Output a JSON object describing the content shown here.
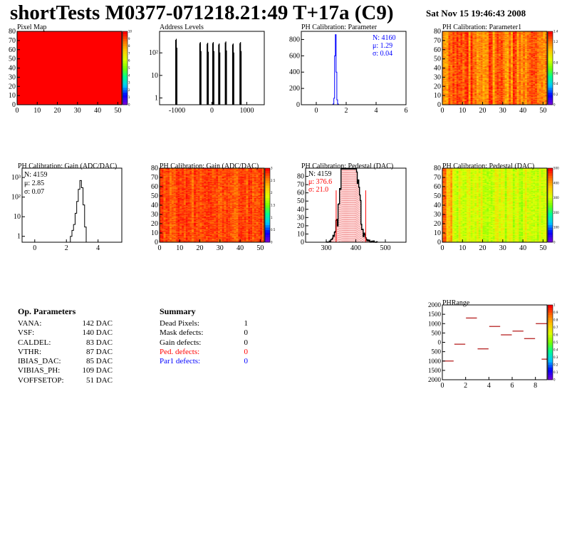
{
  "header": {
    "title": "shortTests M0377-071218.21:49 T+17a (C9)",
    "date": "Sat Nov 15 19:46:43 2008"
  },
  "op_params": {
    "title": "Op. Parameters",
    "rows": [
      {
        "k": "VANA:",
        "v": "142 DAC"
      },
      {
        "k": "VSF:",
        "v": "140 DAC"
      },
      {
        "k": "CALDEL:",
        "v": "83 DAC"
      },
      {
        "k": "VTHR:",
        "v": "87 DAC"
      },
      {
        "k": "IBIAS_DAC:",
        "v": "85 DAC"
      },
      {
        "k": "VIBIAS_PH:",
        "v": "109 DAC"
      },
      {
        "k": "VOFFSETOP:",
        "v": "51 DAC"
      }
    ]
  },
  "summary": {
    "title": "Summary",
    "rows": [
      {
        "k": "Dead Pixels:",
        "v": "1",
        "color": "#000000"
      },
      {
        "k": "Mask defects:",
        "v": "0",
        "color": "#000000"
      },
      {
        "k": "Gain defects:",
        "v": "0",
        "color": "#000000"
      },
      {
        "k": "Ped. defects:",
        "v": "0",
        "color": "#ff0000"
      },
      {
        "k": "Par1 defects:",
        "v": "0",
        "color": "#0000ff"
      }
    ]
  },
  "chart_data": [
    {
      "id": "pixel-map",
      "type": "heatmap",
      "title": "Pixel Map",
      "xlim": [
        0,
        52
      ],
      "ylim": [
        0,
        80
      ],
      "xticks": [
        "0",
        "10",
        "20",
        "30",
        "40",
        "50"
      ],
      "yticks": [
        "0",
        "10",
        "20",
        "30",
        "40",
        "50",
        "60",
        "70",
        "80"
      ],
      "zlim": [
        0,
        10
      ],
      "zticks": [
        "0",
        "1",
        "2",
        "3",
        "4",
        "5",
        "6",
        "7",
        "8",
        "9",
        "10"
      ],
      "uniform_value": 10
    },
    {
      "id": "address-levels",
      "type": "bar",
      "title": "Address Levels",
      "log_y": true,
      "xlim": [
        -1500,
        1500
      ],
      "ylim": [
        0.5,
        900
      ],
      "xticks": [
        "-1000",
        "0",
        "1000"
      ],
      "yticks": [
        "1",
        "10",
        "10²"
      ],
      "peaks": [
        {
          "x": -1020,
          "counts": 420
        },
        {
          "x": -330,
          "counts": 300
        },
        {
          "x": -120,
          "counts": 280
        },
        {
          "x": 40,
          "counts": 300
        },
        {
          "x": 210,
          "counts": 260
        },
        {
          "x": 400,
          "counts": 320
        },
        {
          "x": 610,
          "counts": 260
        },
        {
          "x": 820,
          "counts": 300
        }
      ]
    },
    {
      "id": "ph-parameter",
      "type": "bar",
      "title": "PH Calibration: Parameter",
      "xlim": [
        -1,
        6
      ],
      "ylim": [
        0,
        900
      ],
      "xticks": [
        "0",
        "2",
        "4",
        "6"
      ],
      "yticks": [
        "0",
        "200",
        "400",
        "600",
        "800"
      ],
      "stats": {
        "N": "N: 4160",
        "mean": "μ: 1.29",
        "sigma": "σ: 0.04"
      },
      "bins": [
        [
          1.15,
          10
        ],
        [
          1.2,
          80
        ],
        [
          1.25,
          600
        ],
        [
          1.3,
          860
        ],
        [
          1.35,
          400
        ],
        [
          1.4,
          60
        ],
        [
          1.45,
          10
        ]
      ]
    },
    {
      "id": "ph-parameter1",
      "type": "heatmap",
      "title": "PH Calibration: Parameter1",
      "xlim": [
        0,
        52
      ],
      "ylim": [
        0,
        80
      ],
      "xticks": [
        "0",
        "10",
        "20",
        "30",
        "40",
        "50"
      ],
      "yticks": [
        "0",
        "10",
        "20",
        "30",
        "40",
        "50",
        "60",
        "70",
        "80"
      ],
      "zlim": [
        0,
        1.4
      ],
      "zticks": [
        "0",
        "0.2",
        "0.4",
        "0.6",
        "0.8",
        "1",
        "1.2",
        "1.4"
      ]
    },
    {
      "id": "gain-hist",
      "type": "bar",
      "title": "PH Calibration: Gain (ADC/DAC)",
      "log_y": true,
      "xlim": [
        -0.8,
        5.5
      ],
      "ylim": [
        0.5,
        3000
      ],
      "xticks": [
        "0",
        "2",
        "4"
      ],
      "yticks": [
        "1",
        "10",
        "10²",
        "10³"
      ],
      "stats": {
        "N": "N: 4159",
        "mean": "μ: 2.85",
        "sigma": "σ: 0.07"
      },
      "bins": [
        [
          2.3,
          1
        ],
        [
          2.4,
          2
        ],
        [
          2.5,
          4
        ],
        [
          2.6,
          15
        ],
        [
          2.7,
          60
        ],
        [
          2.8,
          250
        ],
        [
          2.9,
          700
        ],
        [
          3.0,
          300
        ],
        [
          3.1,
          40
        ],
        [
          3.2,
          3
        ]
      ]
    },
    {
      "id": "gain-map",
      "type": "heatmap",
      "title": "PH Calibration: Gain (ADC/DAC)",
      "xlim": [
        0,
        52
      ],
      "ylim": [
        0,
        80
      ],
      "xticks": [
        "0",
        "10",
        "20",
        "30",
        "40",
        "50"
      ],
      "yticks": [
        "0",
        "10",
        "20",
        "30",
        "40",
        "50",
        "60",
        "70",
        "80"
      ],
      "zlim": [
        0,
        3
      ],
      "zticks": [
        "0",
        "0.5",
        "1",
        "1.5",
        "2",
        "2.5",
        "3"
      ]
    },
    {
      "id": "pedestal-hist",
      "type": "bar",
      "title": "PH Calibration: Pedestal (DAC)",
      "xlim": [
        230,
        570
      ],
      "ylim": [
        0,
        90
      ],
      "xticks": [
        "300",
        "400",
        "500"
      ],
      "yticks": [
        "0",
        "10",
        "20",
        "30",
        "40",
        "50",
        "60",
        "70",
        "80"
      ],
      "stats": {
        "N": "N: 4159",
        "mean": "μ: 376.6",
        "sigma": "σ: 21.0"
      },
      "mean": 376.6,
      "sigma": 21.0,
      "n": 4159,
      "cut_lines": [
        333.5,
        433.5
      ]
    },
    {
      "id": "pedestal-map",
      "type": "heatmap",
      "title": "PH Calibration: Pedestal (DAC)",
      "xlim": [
        0,
        52
      ],
      "ylim": [
        0,
        80
      ],
      "xticks": [
        "0",
        "10",
        "20",
        "30",
        "40",
        "50"
      ],
      "yticks": [
        "0",
        "10",
        "20",
        "30",
        "40",
        "50",
        "60",
        "70",
        "80"
      ],
      "zlim": [
        0,
        500
      ],
      "zticks": [
        "0",
        "100",
        "200",
        "300",
        "400",
        "500"
      ]
    },
    {
      "id": "phrange",
      "type": "scatter",
      "title": "PHRange",
      "xlim": [
        0,
        9
      ],
      "ylim": [
        -2000,
        2000
      ],
      "xticks": [
        "0",
        "2",
        "4",
        "6",
        "8"
      ],
      "yticks": [
        "2000",
        "1500",
        "1000",
        "500",
        "0",
        "500",
        "1000",
        "1500",
        "2000"
      ],
      "zlim": [
        0,
        1
      ],
      "zticks": [
        "0",
        "0.1",
        "0.2",
        "0.3",
        "0.4",
        "0.5",
        "0.6",
        "0.7",
        "0.8",
        "0.9",
        "1"
      ],
      "points": [
        [
          0,
          -1000
        ],
        [
          1,
          -100
        ],
        [
          2,
          1300
        ],
        [
          3,
          -350
        ],
        [
          4,
          850
        ],
        [
          5,
          400
        ],
        [
          6,
          600
        ],
        [
          7,
          200
        ],
        [
          8,
          1000
        ],
        [
          8.5,
          -900
        ]
      ]
    }
  ]
}
